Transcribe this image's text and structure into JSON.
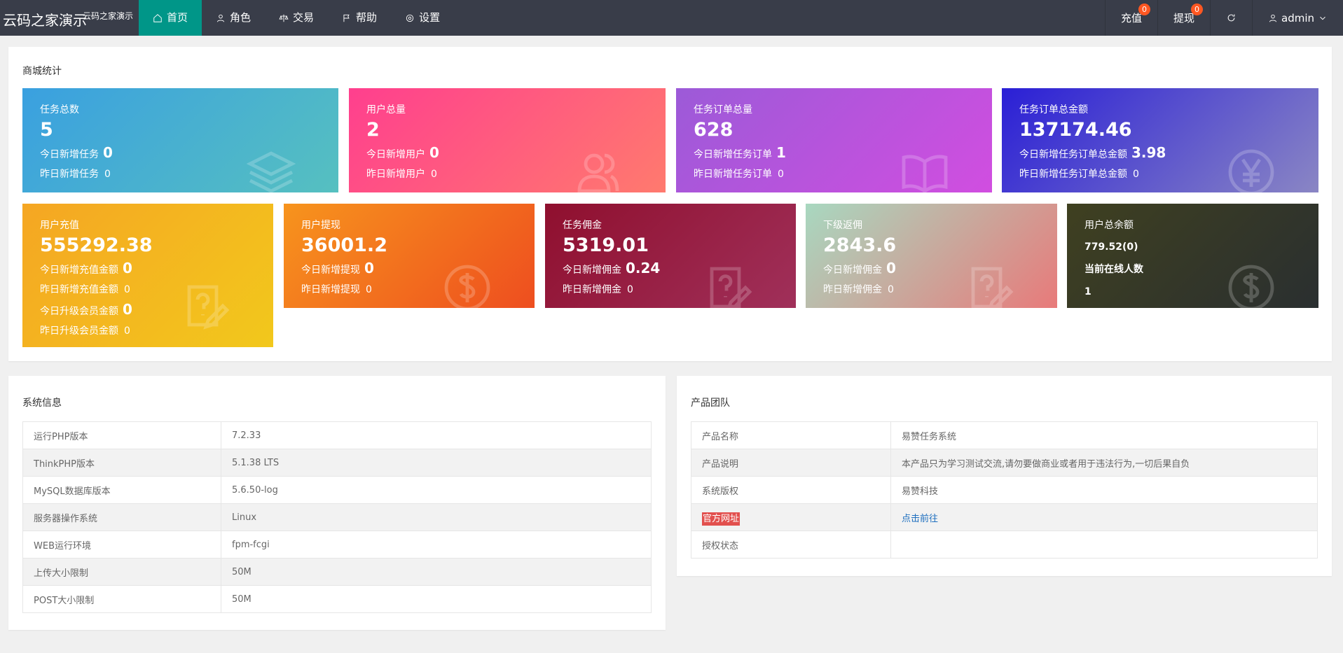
{
  "header": {
    "brand": "云码之家演示",
    "brand_sub": "云码之家演示",
    "nav": [
      {
        "label": "首页",
        "active": true
      },
      {
        "label": "角色"
      },
      {
        "label": "交易"
      },
      {
        "label": "帮助"
      },
      {
        "label": "设置"
      }
    ],
    "nav_right": [
      {
        "label": "充值",
        "badge": "0"
      },
      {
        "label": "提现",
        "badge": "0"
      },
      {
        "label": "admin"
      }
    ]
  },
  "stats": {
    "title": "商城统计",
    "cards": [
      {
        "title": "任务总数",
        "value": 5,
        "lines": [
          {
            "label": "今日新增任务",
            "value": 0,
            "big": true
          },
          {
            "label": "昨日新增任务",
            "value": 0
          }
        ]
      },
      {
        "title": "用户总量",
        "value": 2,
        "lines": [
          {
            "label": "今日新增用户",
            "value": 0,
            "big": true
          },
          {
            "label": "昨日新增用户",
            "value": 0
          }
        ]
      },
      {
        "title": "任务订单总量",
        "value": 628,
        "lines": [
          {
            "label": "今日新增任务订单",
            "value": 1,
            "big": true
          },
          {
            "label": "昨日新增任务订单",
            "value": 0
          }
        ]
      },
      {
        "title": "任务订单总金额",
        "value": 137174.46,
        "lines": [
          {
            "label": "今日新增任务订单总金额",
            "value": 3.98,
            "big": true
          },
          {
            "label": "昨日新增任务订单总金额",
            "value": 0
          }
        ]
      },
      {
        "title": "用户充值",
        "value": 555292.38,
        "lines": [
          {
            "label": "今日新增充值金额",
            "value": 0,
            "big": true
          },
          {
            "label": "昨日新增充值金额",
            "value": 0
          },
          {
            "label": "今日升级会员金额",
            "value": 0,
            "big": true
          },
          {
            "label": "昨日升级会员金额",
            "value": 0
          }
        ]
      },
      {
        "title": "用户提现",
        "value": 36001.2,
        "lines": [
          {
            "label": "今日新增提现",
            "value": 0,
            "big": true
          },
          {
            "label": "昨日新增提现",
            "value": 0
          }
        ]
      },
      {
        "title": "任务佣金",
        "value": 5319.01,
        "lines": [
          {
            "label": "今日新增佣金",
            "value": 0.24,
            "big": true
          },
          {
            "label": "昨日新增佣金",
            "value": 0
          }
        ]
      },
      {
        "title": "下级返佣",
        "value": 2843.6,
        "lines": [
          {
            "label": "今日新增佣金",
            "value": 0,
            "big": true
          },
          {
            "label": "昨日新增佣金",
            "value": 0
          }
        ]
      },
      {
        "title": "用户总余额",
        "subvalue": "779.52(0)",
        "subtitle": "当前在线人数",
        "count": 1
      }
    ]
  },
  "system": {
    "title": "系统信息",
    "rows": [
      [
        "运行PHP版本",
        "7.2.33"
      ],
      [
        "ThinkPHP版本",
        "5.1.38 LTS"
      ],
      [
        "MySQL数据库版本",
        "5.6.50-log"
      ],
      [
        "服务器操作系统",
        "Linux"
      ],
      [
        "WEB运行环境",
        "fpm-fcgi"
      ],
      [
        "上传大小限制",
        "50M"
      ],
      [
        "POST大小限制",
        "50M"
      ]
    ]
  },
  "team": {
    "title": "产品团队",
    "rows": [
      [
        "产品名称",
        "易赞任务系统"
      ],
      [
        "产品说明",
        "本产品只为学习测试交流,请勿要做商业或者用于违法行为,一切后果自负"
      ],
      [
        "系统版权",
        "易赞科技"
      ],
      [
        "官方网址",
        "点击前往"
      ],
      [
        "授权状态",
        ""
      ]
    ]
  }
}
